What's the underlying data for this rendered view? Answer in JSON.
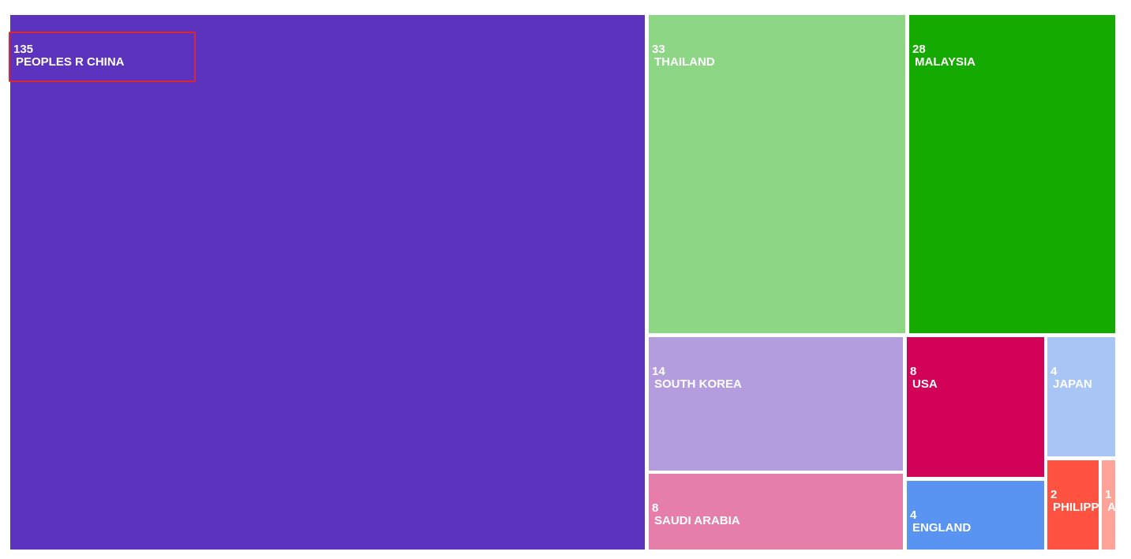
{
  "chart_data": {
    "type": "treemap",
    "title": "",
    "items": [
      {
        "value": "135",
        "label": "PEOPLES R CHINA",
        "color": "#5c33bf"
      },
      {
        "value": "33",
        "label": "THAILAND",
        "color": "#8dd685"
      },
      {
        "value": "28",
        "label": "MALAYSIA",
        "color": "#14aa00"
      },
      {
        "value": "14",
        "label": "SOUTH KOREA",
        "color": "#b39ddf"
      },
      {
        "value": "8",
        "label": "SAUDI ARABIA",
        "color": "#e57faa"
      },
      {
        "value": "8",
        "label": "USA",
        "color": "#d10257"
      },
      {
        "value": "4",
        "label": "ENGLAND",
        "color": "#5994f3"
      },
      {
        "value": "4",
        "label": "JAPAN",
        "color": "#a9c5f6"
      },
      {
        "value": "2",
        "label": "PHILIPP",
        "color": "#ff5240"
      },
      {
        "value": "1",
        "label": "A",
        "color": "#ffa398"
      }
    ],
    "highlighted_item": "PEOPLES R CHINA"
  }
}
